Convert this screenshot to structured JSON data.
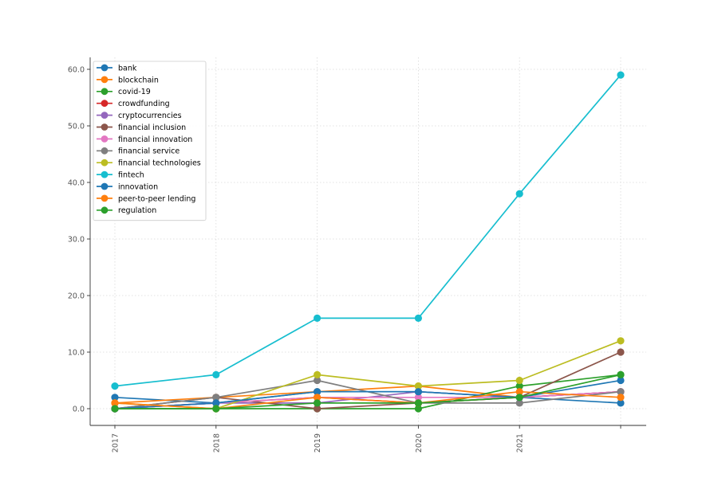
{
  "chart_data": {
    "type": "line",
    "title": "",
    "xlabel": "",
    "ylabel": "",
    "x": [
      "2017",
      "2018",
      "2019",
      "2020",
      "2021",
      "2022"
    ],
    "x_tick_labels": [
      "2017",
      "2018",
      "2019",
      "2020",
      "2021",
      ""
    ],
    "ylim": [
      -3,
      62
    ],
    "y_ticks": [
      0,
      10,
      20,
      30,
      40,
      50,
      60
    ],
    "y_tick_labels": [
      "0.0",
      "10.0",
      "20.0",
      "30.0",
      "40.0",
      "50.0",
      "60.0"
    ],
    "grid": true,
    "legend_position": "top-left",
    "series": [
      {
        "name": "bank",
        "color": "#1f77b4",
        "values": [
          2,
          1,
          3,
          3,
          2,
          1
        ]
      },
      {
        "name": "blockchain",
        "color": "#ff7f0e",
        "values": [
          1,
          2,
          3,
          4,
          2,
          3
        ]
      },
      {
        "name": "covid-19",
        "color": "#2ca02c",
        "values": [
          0,
          0,
          0,
          0,
          4,
          6
        ]
      },
      {
        "name": "crowdfunding",
        "color": "#d62728",
        "values": [
          0,
          1,
          2,
          1,
          2,
          3
        ]
      },
      {
        "name": "cryptocurrencies",
        "color": "#9467bd",
        "values": [
          0,
          1,
          1,
          3,
          2,
          3
        ]
      },
      {
        "name": "financial inclusion",
        "color": "#8c564b",
        "values": [
          0,
          2,
          0,
          1,
          2,
          10
        ]
      },
      {
        "name": "financial innovation",
        "color": "#e377c2",
        "values": [
          0,
          1,
          2,
          2,
          2,
          3
        ]
      },
      {
        "name": "financial service",
        "color": "#7f7f7f",
        "values": [
          0,
          2,
          5,
          1,
          1,
          3
        ]
      },
      {
        "name": "financial technologies",
        "color": "#bcbd22",
        "values": [
          1,
          0,
          6,
          4,
          5,
          12
        ]
      },
      {
        "name": "fintech",
        "color": "#17becf",
        "values": [
          4,
          6,
          16,
          16,
          38,
          59
        ]
      },
      {
        "name": "innovation",
        "color": "#1f77b4",
        "values": [
          0,
          1,
          3,
          3,
          2,
          5
        ]
      },
      {
        "name": "peer-to-peer lending",
        "color": "#ff7f0e",
        "values": [
          1,
          0,
          2,
          1,
          3,
          2
        ]
      },
      {
        "name": "regulation",
        "color": "#2ca02c",
        "values": [
          0,
          0,
          1,
          1,
          2,
          6
        ]
      }
    ]
  }
}
